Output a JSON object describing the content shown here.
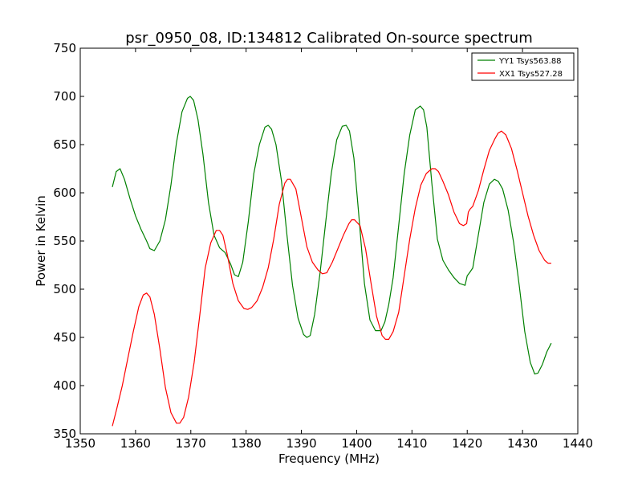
{
  "chart_data": {
    "type": "line",
    "title": "psr_0950_08, ID:134812 Calibrated On-source spectrum",
    "xlabel": "Frequency (MHz)",
    "ylabel": "Power in Kelvin",
    "xlim": [
      1350,
      1440
    ],
    "ylim": [
      350,
      750
    ],
    "x_ticks": [
      "1350",
      "1360",
      "1370",
      "1380",
      "1390",
      "1400",
      "1410",
      "1420",
      "1430",
      "1440"
    ],
    "y_ticks": [
      "350",
      "400",
      "450",
      "500",
      "550",
      "600",
      "650",
      "700",
      "750"
    ],
    "grid": false,
    "legend_position": "top-right",
    "series": [
      {
        "name": "YY1 Tsys563.88",
        "color": "#008000",
        "x": [
          1355.8,
          1356.5,
          1357.2,
          1358,
          1359,
          1360,
          1361,
          1362,
          1362.6,
          1363.4,
          1364.4,
          1365.4,
          1366.4,
          1367.4,
          1368.4,
          1369.4,
          1369.9,
          1370.5,
          1371.3,
          1372.2,
          1373.2,
          1374.2,
          1375.2,
          1376.2,
          1377.2,
          1377.9,
          1378.6,
          1379.4,
          1380.4,
          1381.4,
          1382.4,
          1383.4,
          1384.0,
          1384.6,
          1385.4,
          1386.4,
          1387.4,
          1388.4,
          1389.4,
          1390.4,
          1391.0,
          1391.6,
          1392.4,
          1393.4,
          1394.4,
          1395.4,
          1396.4,
          1397.4,
          1398.1,
          1398.7,
          1399.5,
          1400.4,
          1401.4,
          1402.4,
          1403.4,
          1404.4,
          1405.1,
          1405.8,
          1406.6,
          1407.6,
          1408.6,
          1409.6,
          1410.6,
          1411.5,
          1412.1,
          1412.7,
          1413.6,
          1414.6,
          1415.6,
          1416.6,
          1417.6,
          1418.6,
          1419.6,
          1420.0,
          1420.4,
          1421.0,
          1422.0,
          1423.0,
          1424.0,
          1424.9,
          1425.6,
          1426.4,
          1427.4,
          1428.4,
          1429.4,
          1430.4,
          1431.4,
          1432.2,
          1432.8,
          1433.6,
          1434.4,
          1435.2
        ],
        "y": [
          606,
          622,
          625,
          614,
          594,
          576,
          562,
          550,
          542,
          540,
          550,
          572,
          608,
          652,
          684,
          698,
          700,
          696,
          676,
          640,
          590,
          556,
          543,
          538,
          526,
          515,
          513,
          528,
          570,
          620,
          650,
          668,
          670,
          666,
          650,
          612,
          556,
          504,
          470,
          453,
          450,
          452,
          474,
          518,
          570,
          620,
          655,
          669,
          670,
          664,
          636,
          576,
          506,
          468,
          457,
          457,
          466,
          484,
          512,
          566,
          620,
          660,
          686,
          690,
          686,
          668,
          610,
          552,
          530,
          520,
          512,
          506,
          504,
          514,
          517,
          522,
          556,
          590,
          609,
          614,
          612,
          604,
          582,
          548,
          504,
          456,
          424,
          412,
          413,
          422,
          435,
          444
        ]
      },
      {
        "name": "XX1 Tsys527.28",
        "color": "#ff0000",
        "x": [
          1355.8,
          1356.6,
          1357.6,
          1358.6,
          1359.6,
          1360.6,
          1361.4,
          1362.0,
          1362.6,
          1363.4,
          1364.4,
          1365.4,
          1366.4,
          1367.4,
          1368.0,
          1368.7,
          1369.6,
          1370.6,
          1371.6,
          1372.6,
          1373.6,
          1374.6,
          1375.2,
          1375.8,
          1376.6,
          1377.6,
          1378.6,
          1379.6,
          1380.3,
          1381.0,
          1382.0,
          1383.0,
          1384.0,
          1385.0,
          1386.0,
          1387.0,
          1387.5,
          1388.0,
          1389.0,
          1390.0,
          1391.0,
          1392.0,
          1393.0,
          1393.8,
          1394.6,
          1395.6,
          1396.6,
          1397.6,
          1398.6,
          1399.1,
          1399.6,
          1400.6,
          1401.6,
          1402.6,
          1403.6,
          1404.6,
          1405.2,
          1405.8,
          1406.6,
          1407.6,
          1408.6,
          1409.6,
          1410.6,
          1411.6,
          1412.6,
          1413.6,
          1414.2,
          1414.8,
          1415.6,
          1416.6,
          1417.6,
          1418.6,
          1419.3,
          1419.9,
          1420.2,
          1420.5,
          1421.0,
          1422.0,
          1423.0,
          1424.0,
          1425.0,
          1425.6,
          1426.2,
          1427.0,
          1428.0,
          1429.0,
          1430.0,
          1431.0,
          1432.0,
          1433.0,
          1434.0,
          1434.6,
          1435.2
        ],
        "y": [
          358,
          376,
          400,
          428,
          456,
          482,
          494,
          496,
          492,
          474,
          438,
          398,
          372,
          361,
          361,
          367,
          388,
          424,
          472,
          522,
          548,
          561,
          561,
          556,
          536,
          506,
          488,
          480,
          479,
          481,
          488,
          502,
          522,
          552,
          588,
          610,
          614,
          614,
          604,
          574,
          544,
          528,
          520,
          516,
          517,
          528,
          542,
          556,
          568,
          572,
          572,
          566,
          542,
          506,
          472,
          452,
          448,
          448,
          456,
          476,
          514,
          552,
          584,
          608,
          620,
          625,
          625,
          622,
          612,
          598,
          580,
          568,
          566,
          568,
          580,
          583,
          586,
          602,
          624,
          644,
          656,
          662,
          664,
          660,
          646,
          624,
          600,
          576,
          556,
          540,
          530,
          527,
          527
        ]
      }
    ]
  }
}
